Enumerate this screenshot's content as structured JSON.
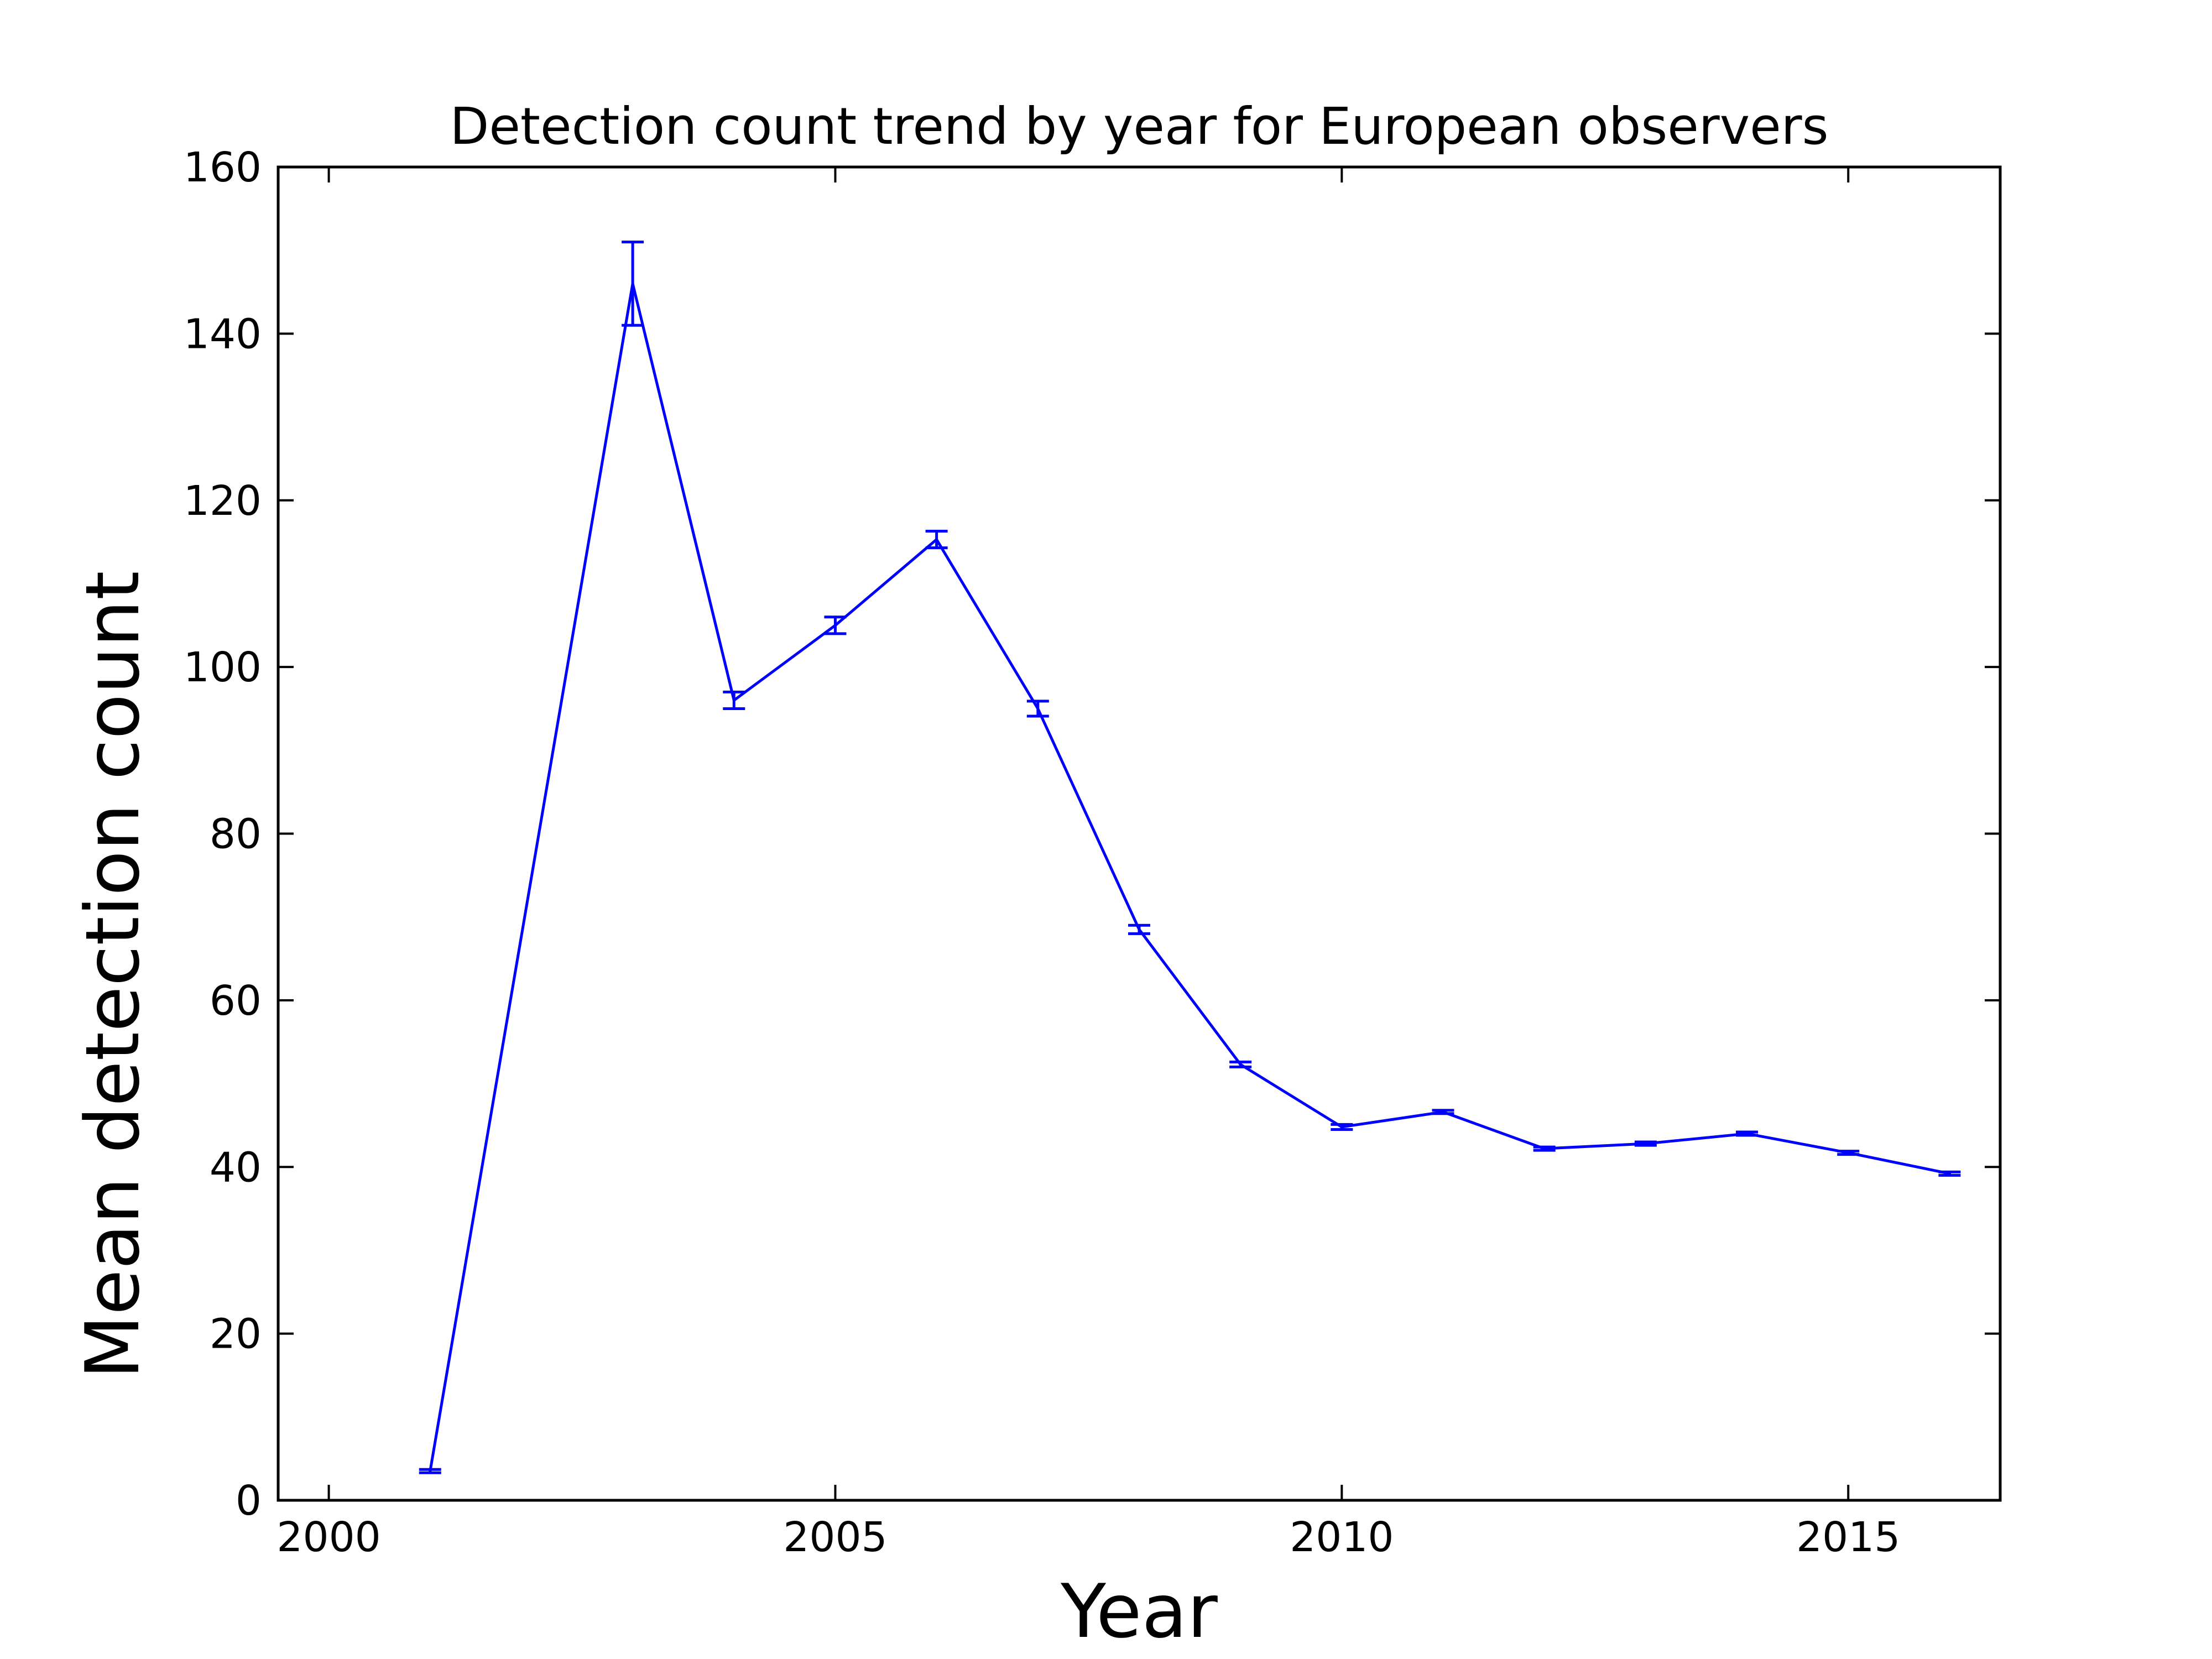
{
  "chart_data": {
    "type": "line",
    "title": "Detection count trend by year for European observers",
    "xlabel": "Year",
    "ylabel": "Mean detection count",
    "xlim": [
      1999.5,
      2016.5
    ],
    "ylim": [
      0,
      160
    ],
    "x_ticks": [
      2000,
      2005,
      2010,
      2015
    ],
    "y_ticks": [
      0,
      20,
      40,
      60,
      80,
      100,
      120,
      140,
      160
    ],
    "grid": false,
    "legend": "none",
    "line_color": "#0000ff",
    "series": [
      {
        "x": [
          2001,
          2003,
          2004,
          2005,
          2006,
          2007,
          2008,
          2009,
          2010,
          2011,
          2012,
          2013,
          2014,
          2015,
          2016
        ],
        "y": [
          3.5,
          146,
          96,
          105,
          115.3,
          95,
          68.5,
          52.3,
          44.8,
          46.6,
          42.2,
          42.8,
          44.0,
          41.7,
          39.2
        ],
        "error": [
          0.2,
          5.0,
          1.0,
          1.0,
          1.0,
          0.9,
          0.5,
          0.3,
          0.3,
          0.2,
          0.2,
          0.2,
          0.2,
          0.2,
          0.2
        ]
      }
    ]
  }
}
